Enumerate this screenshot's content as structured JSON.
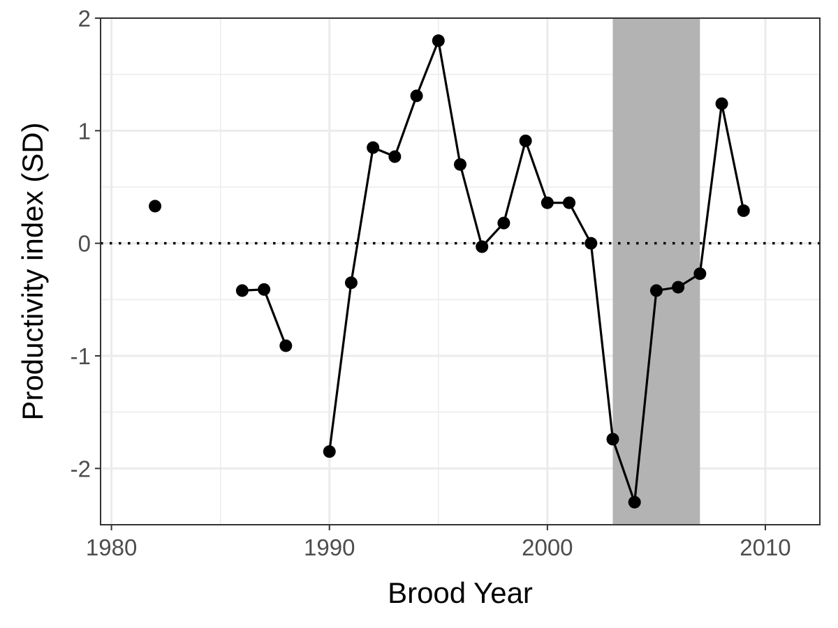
{
  "chart_data": {
    "type": "line",
    "title": "",
    "xlabel": "Brood Year",
    "ylabel": "Productivity index (SD)",
    "xlim": [
      1979.5,
      2012.5
    ],
    "ylim": [
      -2.5,
      2.0
    ],
    "x_ticks": [
      1980,
      1990,
      2000,
      2010
    ],
    "x_tick_labels": [
      "1980",
      "1990",
      "2000",
      "2010"
    ],
    "x_minor_ticks": [
      1985,
      1995,
      2005
    ],
    "y_ticks": [
      -2,
      -1,
      0,
      1,
      2
    ],
    "y_tick_labels": [
      "-2",
      "-1",
      "0",
      "1",
      "2"
    ],
    "y_minor_ticks": [
      -1.5,
      -0.5,
      0.5,
      1.5
    ],
    "grid": true,
    "legend": "none",
    "reference_line": {
      "y": 0,
      "style": "dotted"
    },
    "shaded_region": {
      "x": [
        2003,
        2007
      ],
      "color": "#b3b3b3"
    },
    "line_color": "#000000",
    "series": [
      {
        "points": [
          {
            "x": 1982,
            "y": 0.33
          },
          {
            "x": 1983,
            "y": null
          },
          {
            "x": 1984,
            "y": null
          },
          {
            "x": 1985,
            "y": null
          },
          {
            "x": 1986,
            "y": -0.42
          },
          {
            "x": 1987,
            "y": -0.41
          },
          {
            "x": 1988,
            "y": -0.91
          },
          {
            "x": 1989,
            "y": null
          },
          {
            "x": 1990,
            "y": -1.85
          },
          {
            "x": 1991,
            "y": -0.35
          },
          {
            "x": 1992,
            "y": 0.85
          },
          {
            "x": 1993,
            "y": 0.77
          },
          {
            "x": 1994,
            "y": 1.31
          },
          {
            "x": 1995,
            "y": 1.8
          },
          {
            "x": 1996,
            "y": 0.7
          },
          {
            "x": 1997,
            "y": -0.03
          },
          {
            "x": 1998,
            "y": 0.18
          },
          {
            "x": 1999,
            "y": 0.91
          },
          {
            "x": 2000,
            "y": 0.36
          },
          {
            "x": 2001,
            "y": 0.36
          },
          {
            "x": 2002,
            "y": 0.0
          },
          {
            "x": 2003,
            "y": -1.74
          },
          {
            "x": 2004,
            "y": -2.3
          },
          {
            "x": 2005,
            "y": -0.42
          },
          {
            "x": 2006,
            "y": -0.39
          },
          {
            "x": 2007,
            "y": -0.27
          },
          {
            "x": 2008,
            "y": 1.24
          },
          {
            "x": 2009,
            "y": 0.29
          }
        ]
      }
    ]
  }
}
